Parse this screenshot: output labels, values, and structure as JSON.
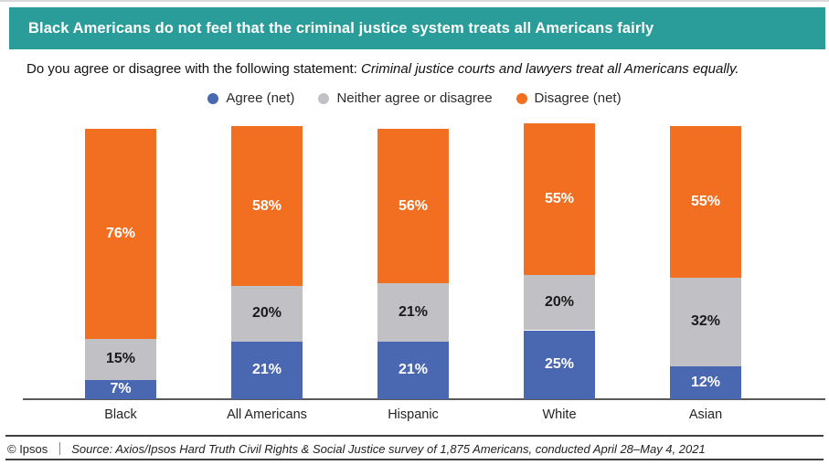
{
  "header": {
    "title": "Black Americans do not feel that the criminal justice system treats all Americans fairly",
    "background_color": "#2a9d9a",
    "text_color": "#ffffff"
  },
  "subtitle": {
    "prefix": "Do you agree or disagree with the following statement: ",
    "statement": "Criminal justice courts and lawyers treat all Americans equally."
  },
  "chart_data": {
    "type": "bar",
    "subtype": "stacked-vertical",
    "categories": [
      "Black",
      "All Americans",
      "Hispanic",
      "White",
      "Asian"
    ],
    "series": [
      {
        "name": "Agree (net)",
        "color": "#4a67b1",
        "label_color": "#ffffff",
        "values": [
          7,
          21,
          21,
          25,
          12
        ]
      },
      {
        "name": "Neither agree or disagree",
        "color": "#c1c1c5",
        "label_color": "#1a1a1a",
        "values": [
          15,
          20,
          21,
          20,
          32
        ]
      },
      {
        "name": "Disagree (net)",
        "color": "#f26f21",
        "label_color": "#ffffff",
        "values": [
          76,
          58,
          56,
          55,
          55
        ]
      }
    ],
    "value_suffix": "%",
    "stack_order_bottom_to_top": [
      "Agree (net)",
      "Neither agree or disagree",
      "Disagree (net)"
    ],
    "legend_position": "top-center",
    "grid": false,
    "y_axis_visible": false,
    "ylim": [
      0,
      100
    ],
    "axis_line_color": "#59595b"
  },
  "footer": {
    "copyright": "© Ipsos",
    "source": "Source: Axios/Ipsos Hard Truth Civil Rights & Social Justice survey of 1,875 Americans, conducted April 28–May 4, 2021"
  }
}
